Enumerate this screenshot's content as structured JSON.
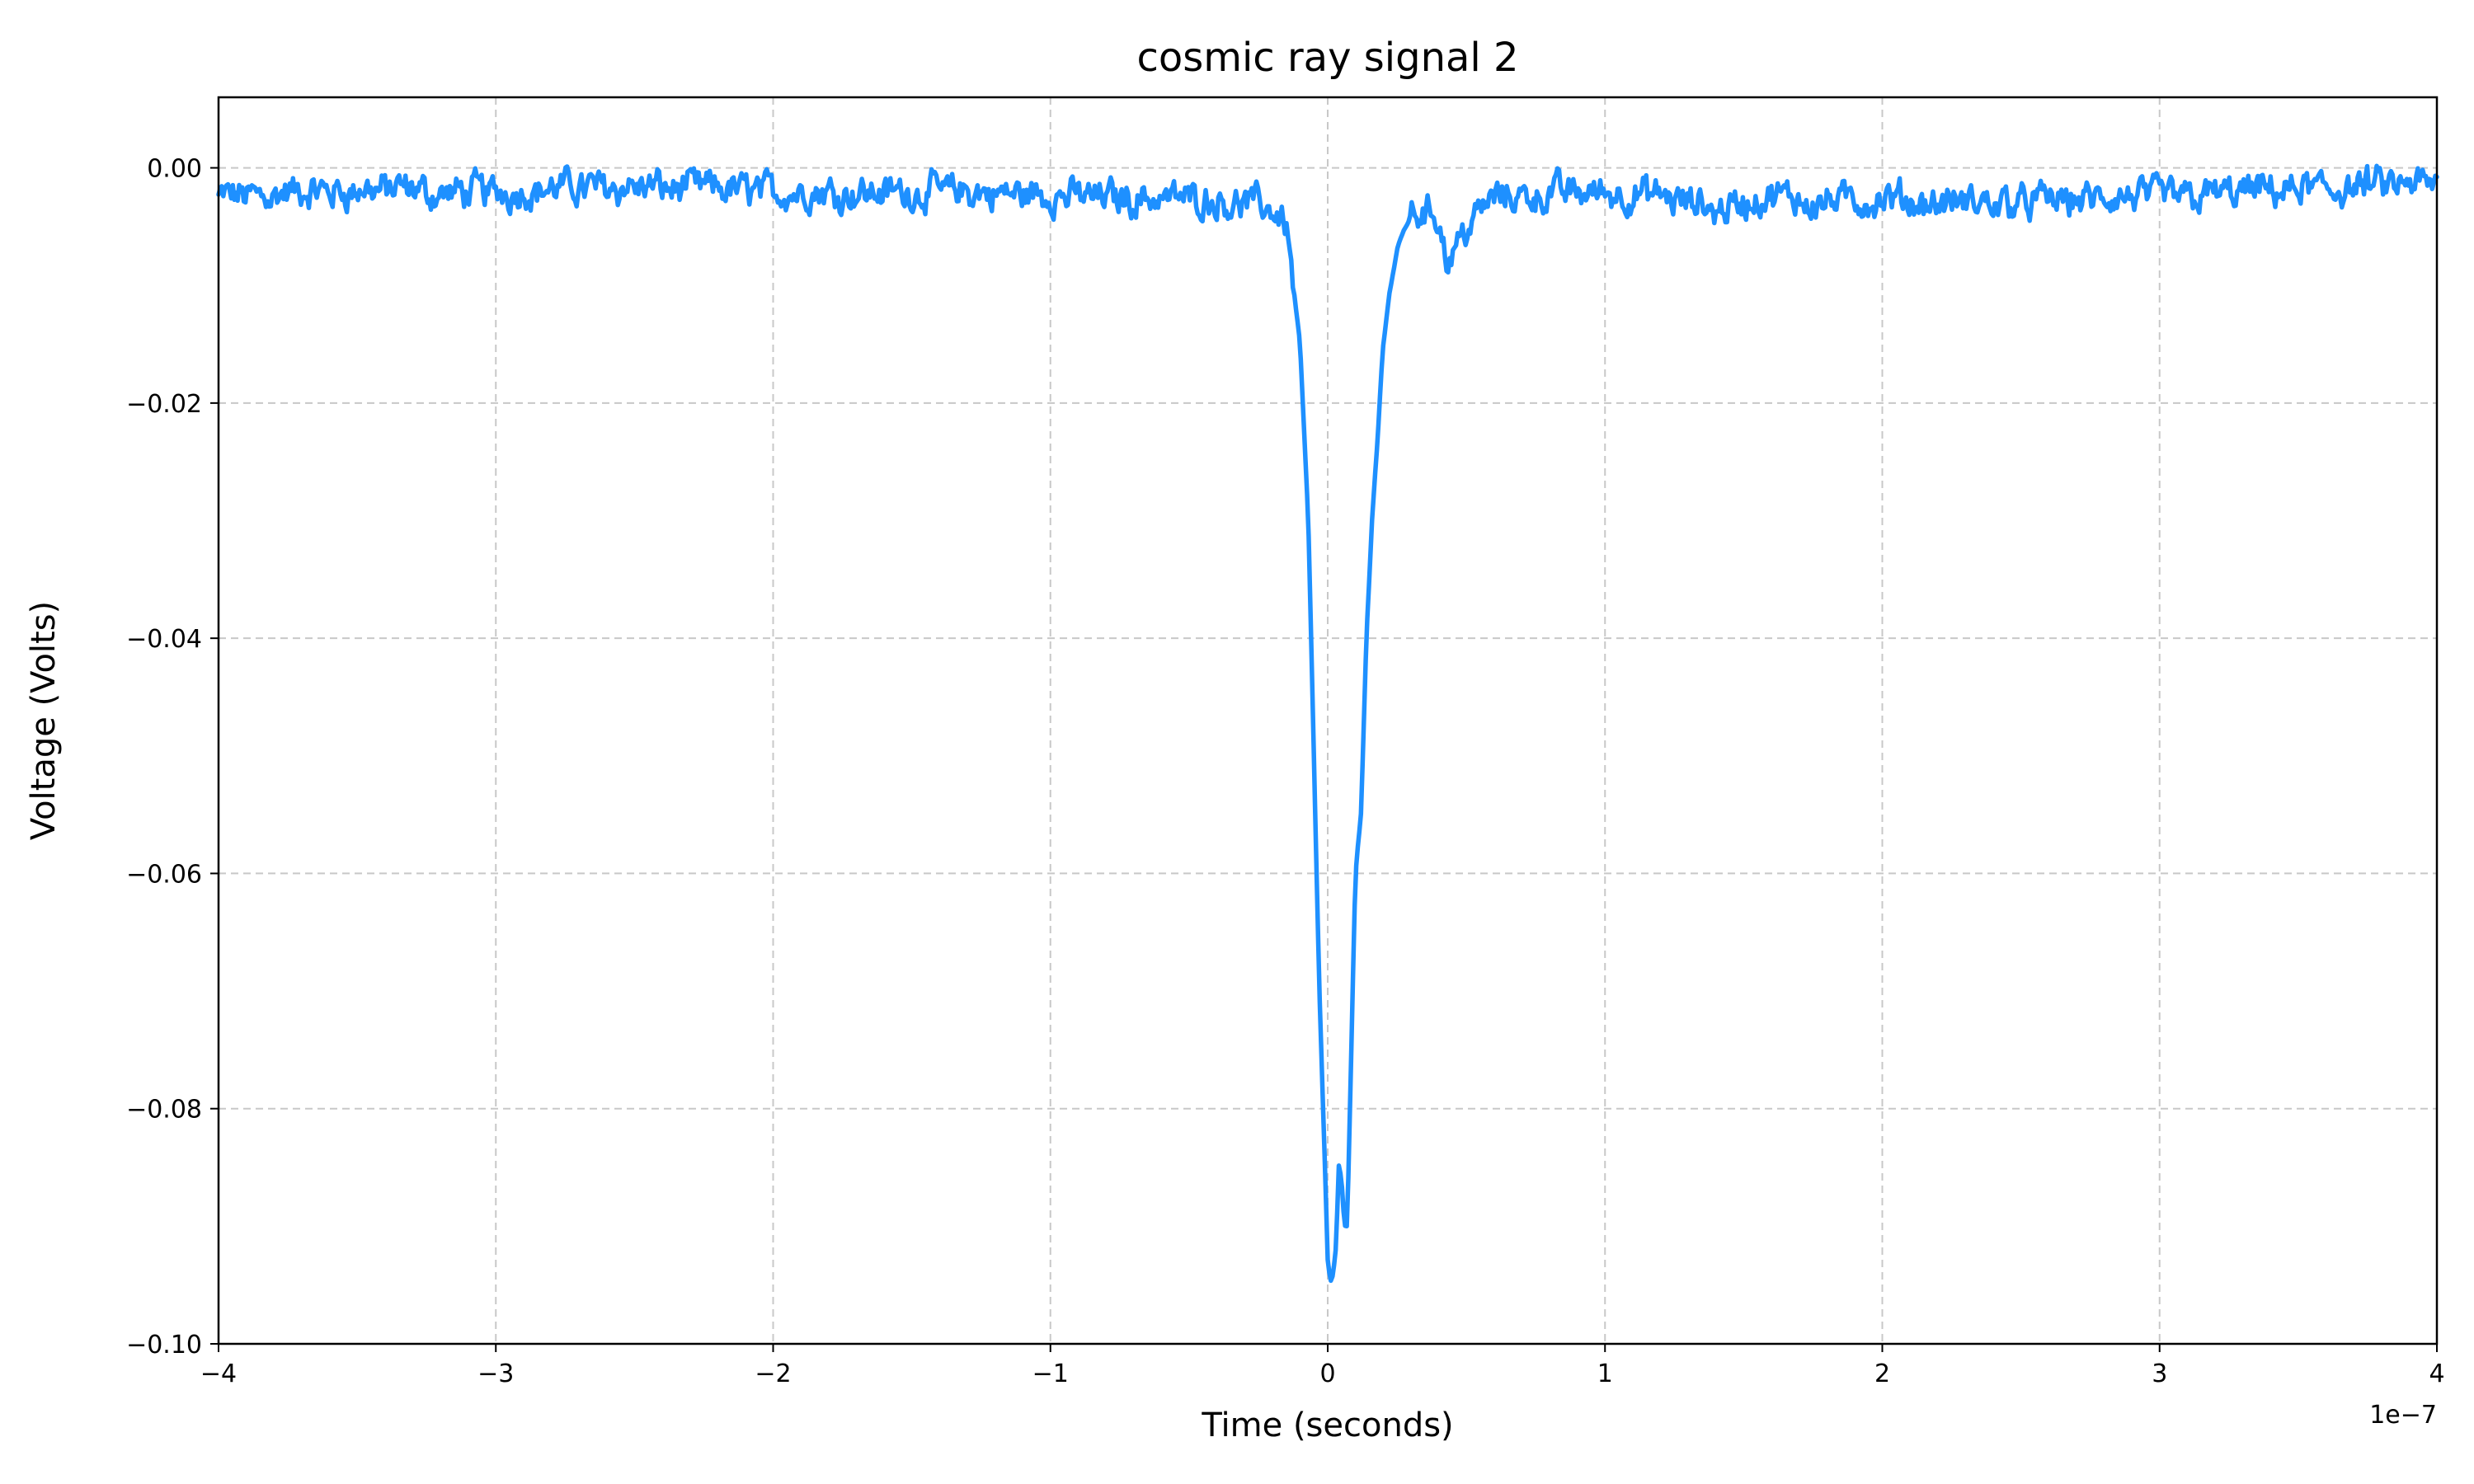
{
  "chart_data": {
    "type": "line",
    "title": "cosmic ray signal 2",
    "xlabel": "Time (seconds)",
    "ylabel": "Voltage (Volts)",
    "x_offset_label": "1e−7",
    "xlim": [
      -4e-07,
      4e-07
    ],
    "ylim": [
      -0.1,
      0.006
    ],
    "x_ticks": [
      {
        "value": -4e-07,
        "label": "−4"
      },
      {
        "value": -3e-07,
        "label": "−3"
      },
      {
        "value": -2e-07,
        "label": "−2"
      },
      {
        "value": -1e-07,
        "label": "−1"
      },
      {
        "value": 0,
        "label": "0"
      },
      {
        "value": 1e-07,
        "label": "1"
      },
      {
        "value": 2e-07,
        "label": "2"
      },
      {
        "value": 3e-07,
        "label": "3"
      },
      {
        "value": 4e-07,
        "label": "4"
      }
    ],
    "y_ticks": [
      {
        "value": 0.0,
        "label": "0.00"
      },
      {
        "value": -0.02,
        "label": "−0.02"
      },
      {
        "value": -0.04,
        "label": "−0.04"
      },
      {
        "value": -0.06,
        "label": "−0.06"
      },
      {
        "value": -0.08,
        "label": "−0.08"
      },
      {
        "value": -0.1,
        "label": "−0.10"
      }
    ],
    "grid": true,
    "line_color": "#1e90ff",
    "series": [
      {
        "name": "",
        "color": "#1e90ff",
        "x": [
          -4e-07,
          -3.8e-07,
          -3.6e-07,
          -3.4e-07,
          -3.2e-07,
          -3e-07,
          -2.8e-07,
          -2.6e-07,
          -2.4e-07,
          -2.2e-07,
          -2e-07,
          -1.8e-07,
          -1.6e-07,
          -1.4e-07,
          -1.2e-07,
          -1e-07,
          -8e-08,
          -6e-08,
          -4e-08,
          -2e-08,
          -1.5e-08,
          -1e-08,
          -7e-09,
          -5e-09,
          -3e-09,
          -1e-09,
          0.0,
          1e-09,
          2e-09,
          3e-09,
          4e-09,
          5e-09,
          6e-09,
          7e-09,
          8e-09,
          9e-09,
          1e-08,
          1.2e-08,
          1.4e-08,
          1.6e-08,
          1.8e-08,
          2e-08,
          2.2e-08,
          2.5e-08,
          2.8e-08,
          3e-08,
          3.5e-08,
          4e-08,
          4.3e-08,
          5e-08,
          6e-08,
          8e-08,
          1e-07,
          1.2e-07,
          1.4e-07,
          1.6e-07,
          1.8e-07,
          2e-07,
          2.2e-07,
          2.4e-07,
          2.6e-07,
          2.8e-07,
          3e-07,
          3.2e-07,
          3.4e-07,
          3.6e-07,
          3.8e-07,
          4e-07
        ],
        "y": [
          -0.0025,
          -0.0022,
          -0.002,
          -0.0018,
          -0.0022,
          -0.002,
          -0.0018,
          -0.0015,
          -0.0017,
          -0.0018,
          -0.002,
          -0.002,
          -0.0021,
          -0.002,
          -0.0022,
          -0.0023,
          -0.0025,
          -0.0025,
          -0.0026,
          -0.0035,
          -0.0045,
          -0.015,
          -0.03,
          -0.05,
          -0.07,
          -0.085,
          -0.093,
          -0.095,
          -0.094,
          -0.092,
          -0.085,
          -0.086,
          -0.09,
          -0.09,
          -0.08,
          -0.07,
          -0.06,
          -0.055,
          -0.04,
          -0.03,
          -0.023,
          -0.015,
          -0.011,
          -0.007,
          -0.005,
          -0.004,
          -0.0035,
          -0.004,
          -0.008,
          -0.005,
          -0.0025,
          -0.0022,
          -0.002,
          -0.0025,
          -0.0035,
          -0.0025,
          -0.0028,
          -0.0028,
          -0.003,
          -0.003,
          -0.0028,
          -0.0027,
          -0.0025,
          -0.0022,
          -0.002,
          -0.0018,
          -0.0016,
          -0.0015
        ]
      }
    ]
  }
}
